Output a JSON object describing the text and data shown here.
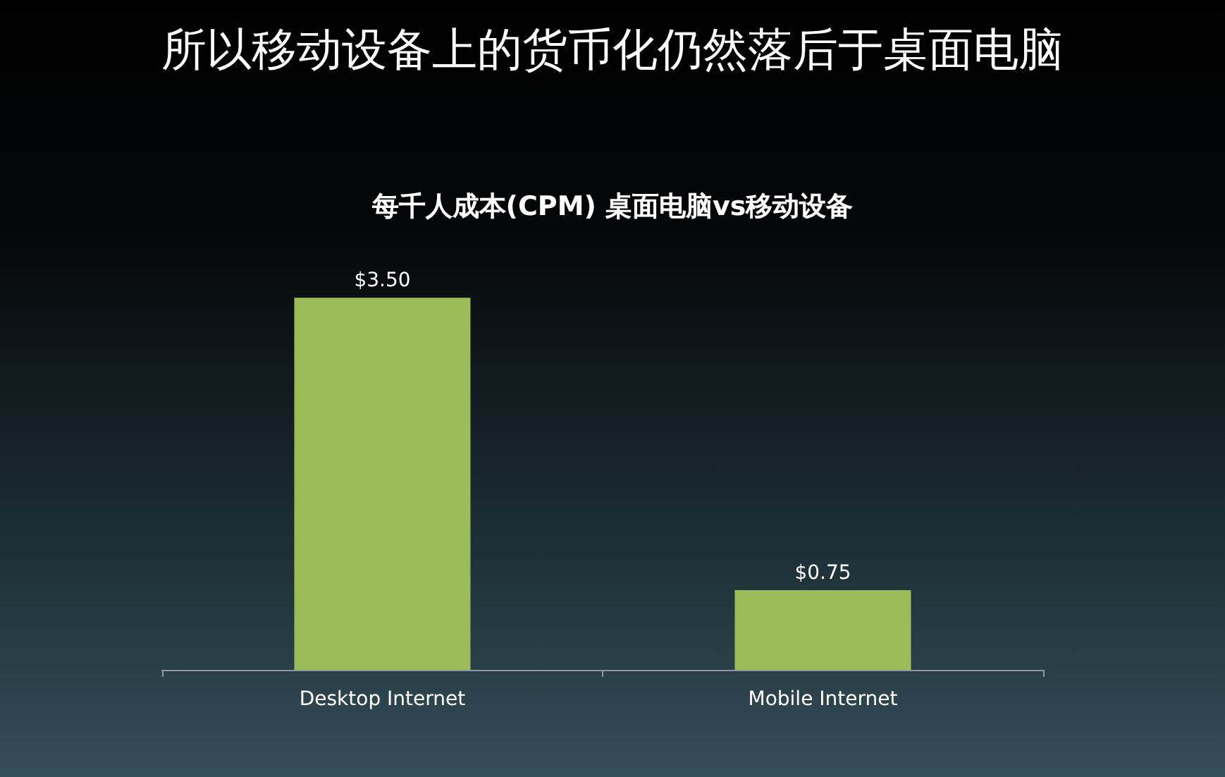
{
  "chart_data": {
    "type": "bar",
    "title": "所以移动设备上的货币化仍然落后于桌面电脑",
    "subtitle": "每千人成本(CPM) 桌面电脑vs移动设备",
    "categories": [
      "Desktop Internet",
      "Mobile Internet"
    ],
    "values": [
      3.5,
      0.75
    ],
    "value_labels": [
      "$3.50",
      "$0.75"
    ],
    "color": "#9bbb59"
  }
}
